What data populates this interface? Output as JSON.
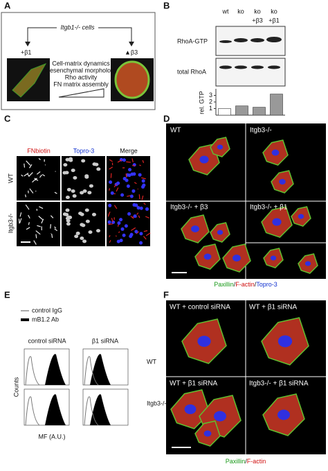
{
  "panels": {
    "a": {
      "letter": "A",
      "title": "Itgb1-/- cells",
      "left": "+β1",
      "right": "▲β3",
      "lines": [
        "Cell-matrix dynamics",
        "Mesenchymal morphology",
        "Rho activity",
        "FN matrix assembly"
      ]
    },
    "b": {
      "letter": "B",
      "lanes": [
        "wt",
        "ko",
        "ko",
        "ko"
      ],
      "lanes2": [
        "+β3",
        "+β1"
      ],
      "blots": [
        "RhoA-GTP",
        "total RhoA"
      ],
      "chart": {
        "type": "bar",
        "ylabel": "rel. GTP",
        "values": [
          1,
          1.4,
          1.2,
          3.2
        ],
        "colors": [
          "#ffffff",
          "#999999",
          "#999999",
          "#999999"
        ],
        "ylim": [
          0,
          4
        ],
        "yticks": [
          1,
          2,
          3
        ]
      }
    },
    "c": {
      "letter": "C",
      "columns": [
        "FNbiotin",
        "Topro-3",
        "Merge"
      ],
      "rows": [
        "WT",
        "Itgb3-/-"
      ]
    },
    "d": {
      "letter": "D",
      "quadrants": [
        "WT",
        "Itgb3-/-",
        "Itgb3-/- + β3",
        "Itgb3-/- + β1"
      ],
      "caption": [
        "Paxillin",
        "/",
        "F-actin",
        "/",
        "Topro-3"
      ]
    },
    "e": {
      "letter": "E",
      "legend": [
        "control IgG",
        "mB1.2 Ab"
      ],
      "columns": [
        "control siRNA",
        "β1 siRNA"
      ],
      "rows": [
        "WT",
        "Itgb3-/-"
      ],
      "ylabel": "Counts",
      "xlabel": "MF (A.U.)"
    },
    "f": {
      "letter": "F",
      "quadrants": [
        "WT + control siRNA",
        "WT + β1 siRNA",
        "WT + β1 siRNA",
        "Itgb3-/- + β1 siRNA"
      ],
      "caption": [
        "Paxillin",
        "/",
        "F-actin"
      ]
    }
  }
}
